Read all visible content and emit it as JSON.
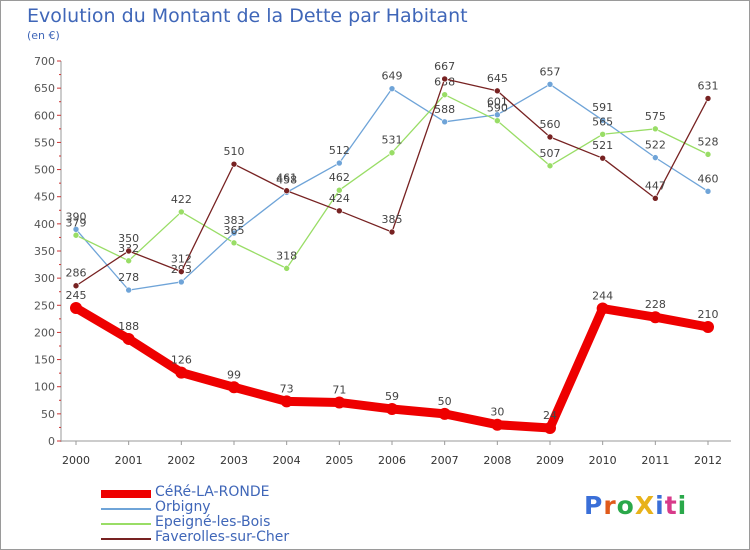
{
  "title": "Evolution du Montant de la Dette par Habitant",
  "subtitle": "(en €)",
  "logo": {
    "text": "ProXiti",
    "colors": [
      "#3a6fd8",
      "#e05a1a",
      "#2aa84a",
      "#e8b21a",
      "#3a6fd8",
      "#d83a8a",
      "#2aa84a"
    ]
  },
  "chart_data": {
    "type": "line",
    "title": "Evolution du Montant de la Dette par Habitant",
    "subtitle": "(en €)",
    "x": [
      "2000",
      "2001",
      "2002",
      "2003",
      "2004",
      "2005",
      "2006",
      "2007",
      "2008",
      "2009",
      "2010",
      "2011",
      "2012"
    ],
    "ylim": [
      0,
      700
    ],
    "yticks": [
      0,
      50,
      100,
      150,
      200,
      250,
      300,
      350,
      400,
      450,
      500,
      550,
      600,
      650,
      700
    ],
    "grid": false,
    "legend_position": "bottom-left",
    "series": [
      {
        "name": "CéRé-LA-RONDE",
        "color": "#ee0000",
        "width": 9,
        "labels": true,
        "values": [
          245,
          188,
          126,
          99,
          73,
          71,
          59,
          50,
          30,
          24,
          244,
          228,
          210
        ]
      },
      {
        "name": "Orbigny",
        "color": "#6fa4d8",
        "width": 1.3,
        "labels": true,
        "values": [
          390,
          278,
          293,
          383,
          458,
          512,
          649,
          588,
          601,
          657,
          591,
          522,
          460
        ]
      },
      {
        "name": "Epeigné-les-Bois",
        "color": "#99dd66",
        "width": 1.3,
        "labels": true,
        "values": [
          379,
          332,
          422,
          365,
          318,
          462,
          531,
          638,
          590,
          507,
          565,
          575,
          528
        ]
      },
      {
        "name": "Faverolles-sur-Cher",
        "color": "#772222",
        "width": 1.3,
        "labels": true,
        "values": [
          286,
          350,
          312,
          510,
          461,
          424,
          385,
          667,
          645,
          560,
          521,
          447,
          631
        ]
      }
    ]
  }
}
